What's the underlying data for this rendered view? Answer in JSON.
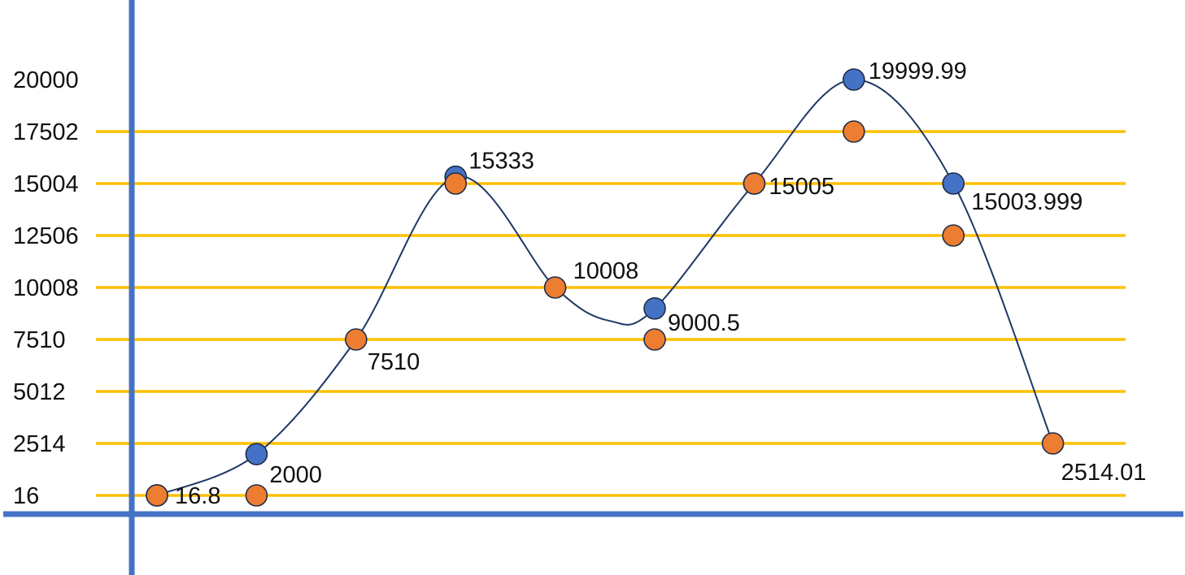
{
  "chart_data": {
    "type": "scatter",
    "title": "",
    "xlabel": "",
    "ylabel": "",
    "legend": "none",
    "grid": true,
    "y_tick_labels": [
      "16",
      "2514",
      "5012",
      "7510",
      "10008",
      "12506",
      "15004",
      "17502",
      "20000"
    ],
    "y_ticks": [
      16,
      2514,
      5012,
      7510,
      10008,
      12506,
      15004,
      17502,
      20000
    ],
    "ylim": [
      16,
      20000
    ],
    "x": [
      1,
      2,
      3,
      4,
      5,
      6,
      7,
      8,
      9,
      10
    ],
    "series": [
      {
        "color": "#4472c4",
        "smooth_line": true,
        "points": [
          {
            "x": 1,
            "y": 16.8
          },
          {
            "x": 2,
            "y": 2000
          },
          {
            "x": 4,
            "y": 15333
          },
          {
            "x": 6,
            "y": 9000.5
          },
          {
            "x": 7,
            "y": 15005
          },
          {
            "x": 8,
            "y": 19999.99
          },
          {
            "x": 9,
            "y": 15003.999
          }
        ]
      },
      {
        "color": "#ed7d31",
        "points": [
          {
            "x": 1,
            "y": 16
          },
          {
            "x": 2,
            "y": 16
          },
          {
            "x": 3,
            "y": 7510
          },
          {
            "x": 4,
            "y": 15004
          },
          {
            "x": 5,
            "y": 10008
          },
          {
            "x": 6,
            "y": 7510
          },
          {
            "x": 7,
            "y": 15004
          },
          {
            "x": 8,
            "y": 17502
          },
          {
            "x": 9,
            "y": 12506
          },
          {
            "x": 10,
            "y": 2514
          }
        ]
      }
    ],
    "curve": {
      "color": "#1f3864",
      "points": [
        {
          "x": 1,
          "y": 16.8
        },
        {
          "x": 2,
          "y": 2000
        },
        {
          "x": 3,
          "y": 7510
        },
        {
          "x": 4,
          "y": 15333
        },
        {
          "x": 5,
          "y": 10008
        },
        {
          "x": 5.55,
          "y": 8400
        },
        {
          "x": 6,
          "y": 9000.5
        },
        {
          "x": 7,
          "y": 15005
        },
        {
          "x": 8,
          "y": 19999.99
        },
        {
          "x": 9,
          "y": 15003.999
        },
        {
          "x": 10,
          "y": 2514
        }
      ]
    },
    "data_labels": [
      {
        "text": "16.8",
        "x": 1,
        "y": 16.8
      },
      {
        "text": "2000",
        "x": 2,
        "y": 2000
      },
      {
        "text": "7510",
        "x": 3,
        "y": 7510
      },
      {
        "text": "15333",
        "x": 4,
        "y": 15333
      },
      {
        "text": "10008",
        "x": 5,
        "y": 10008
      },
      {
        "text": "9000.5",
        "x": 6,
        "y": 9000.5
      },
      {
        "text": "15005",
        "x": 7,
        "y": 15005
      },
      {
        "text": "19999.99",
        "x": 8,
        "y": 19999.99
      },
      {
        "text": "15003.999",
        "x": 9,
        "y": 15003.999
      },
      {
        "text": "2514.01",
        "x": 10,
        "y": 2514
      }
    ],
    "colors": {
      "axis": "#4472c4",
      "gridline": "#ffc000",
      "blue_marker": "#4472c4",
      "orange_marker": "#ed7d31",
      "marker_outline": "#1f2d4a"
    }
  }
}
